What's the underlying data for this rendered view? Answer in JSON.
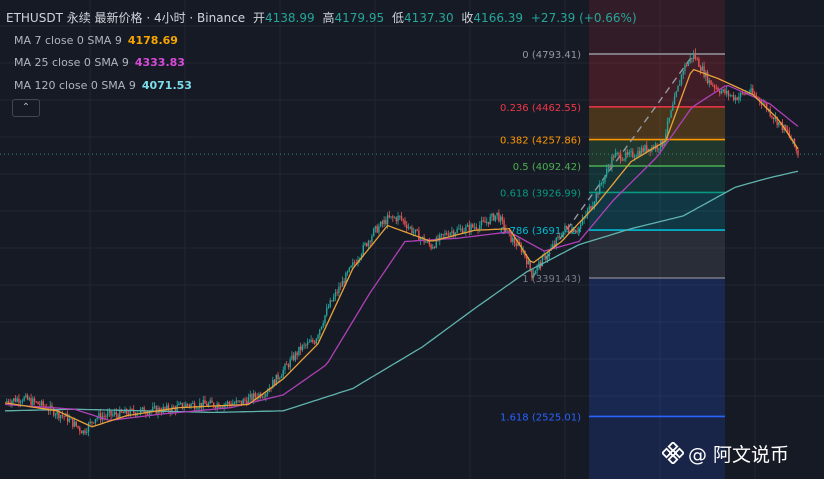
{
  "header": {
    "symbol": "ETHUSDT 永续 最新价格 · 4小时 · Binance",
    "open_label": "开",
    "open": "4138.99",
    "high_label": "高",
    "high": "4179.95",
    "low_label": "低",
    "low": "4137.30",
    "close_label": "收",
    "close": "4166.39",
    "change": "+27.39 (+0.66%)"
  },
  "indicators": [
    {
      "label": "MA 7 close 0 SMA 9",
      "value": "4178.69",
      "color": "#F7A600"
    },
    {
      "label": "MA 25 close 0 SMA 9",
      "value": "4333.83",
      "color": "#D84BD8"
    },
    {
      "label": "MA 120 close 0 SMA 9",
      "value": "4071.53",
      "color": "#7DDDE8"
    }
  ],
  "collapse_icon": "chevron-up-icon",
  "watermark": {
    "icon": "binance-logo-icon",
    "text": "@ 阿文说币"
  },
  "chart_data": {
    "type": "candlestick",
    "title": "",
    "xlabel": "",
    "ylabel": "",
    "ylim": [
      2300,
      4900
    ],
    "grid": true,
    "fibonacci": [
      {
        "ratio": "0",
        "price": 4793.41,
        "label": "0 (4793.41)",
        "color": "#9598A1"
      },
      {
        "ratio": "0.236",
        "price": 4462.55,
        "label": "0.236 (4462.55)",
        "color": "#F23645"
      },
      {
        "ratio": "0.382",
        "price": 4257.86,
        "label": "0.382 (4257.86)",
        "color": "#FF9800"
      },
      {
        "ratio": "0.5",
        "price": 4092.42,
        "label": "0.5 (4092.42)",
        "color": "#4CAF50"
      },
      {
        "ratio": "0.618",
        "price": 3926.99,
        "label": "0.618 (3926.99)",
        "color": "#089981"
      },
      {
        "ratio": "0.786",
        "price": 3691.46,
        "label": "0.786 (3691.46)",
        "color": "#00BCD4"
      },
      {
        "ratio": "1",
        "price": 3391.43,
        "label": "1 (3391.43)",
        "color": "#787B86"
      },
      {
        "ratio": "1.618",
        "price": 2525.01,
        "label": "1.618 (2525.01)",
        "color": "#2962FF"
      }
    ],
    "price_path": [
      [
        0,
        2620
      ],
      [
        10,
        2640
      ],
      [
        20,
        2600
      ],
      [
        35,
        2520
      ],
      [
        45,
        2430
      ],
      [
        52,
        2520
      ],
      [
        65,
        2540
      ],
      [
        80,
        2560
      ],
      [
        95,
        2570
      ],
      [
        105,
        2600
      ],
      [
        118,
        2600
      ],
      [
        135,
        2610
      ],
      [
        150,
        2680
      ],
      [
        162,
        2840
      ],
      [
        170,
        2950
      ],
      [
        178,
        3000
      ],
      [
        186,
        3210
      ],
      [
        195,
        3380
      ],
      [
        205,
        3560
      ],
      [
        212,
        3680
      ],
      [
        220,
        3760
      ],
      [
        227,
        3770
      ],
      [
        235,
        3680
      ],
      [
        245,
        3590
      ],
      [
        255,
        3680
      ],
      [
        265,
        3700
      ],
      [
        275,
        3730
      ],
      [
        283,
        3790
      ],
      [
        290,
        3650
      ],
      [
        298,
        3560
      ],
      [
        303,
        3420
      ],
      [
        312,
        3540
      ],
      [
        322,
        3700
      ],
      [
        330,
        3700
      ],
      [
        340,
        3910
      ],
      [
        350,
        4160
      ],
      [
        358,
        4150
      ],
      [
        368,
        4200
      ],
      [
        378,
        4230
      ],
      [
        385,
        4500
      ],
      [
        390,
        4700
      ],
      [
        396,
        4790
      ],
      [
        405,
        4620
      ],
      [
        412,
        4560
      ],
      [
        420,
        4520
      ],
      [
        428,
        4560
      ],
      [
        435,
        4500
      ],
      [
        442,
        4400
      ],
      [
        450,
        4300
      ],
      [
        456,
        4170
      ]
    ],
    "ma7_path": [
      [
        0,
        2610
      ],
      [
        30,
        2560
      ],
      [
        50,
        2460
      ],
      [
        70,
        2530
      ],
      [
        100,
        2580
      ],
      [
        140,
        2600
      ],
      [
        160,
        2760
      ],
      [
        180,
        2980
      ],
      [
        200,
        3450
      ],
      [
        220,
        3720
      ],
      [
        245,
        3620
      ],
      [
        270,
        3690
      ],
      [
        290,
        3700
      ],
      [
        303,
        3480
      ],
      [
        320,
        3620
      ],
      [
        340,
        3850
      ],
      [
        360,
        4120
      ],
      [
        380,
        4250
      ],
      [
        395,
        4700
      ],
      [
        410,
        4640
      ],
      [
        430,
        4540
      ],
      [
        445,
        4380
      ],
      [
        456,
        4200
      ]
    ],
    "ma25_path": [
      [
        0,
        2600
      ],
      [
        40,
        2570
      ],
      [
        60,
        2500
      ],
      [
        90,
        2540
      ],
      [
        130,
        2580
      ],
      [
        160,
        2660
      ],
      [
        185,
        2850
      ],
      [
        210,
        3300
      ],
      [
        230,
        3620
      ],
      [
        260,
        3640
      ],
      [
        290,
        3680
      ],
      [
        310,
        3560
      ],
      [
        330,
        3620
      ],
      [
        350,
        3880
      ],
      [
        375,
        4150
      ],
      [
        395,
        4460
      ],
      [
        415,
        4600
      ],
      [
        440,
        4480
      ],
      [
        456,
        4340
      ]
    ],
    "ma120_path": [
      [
        0,
        2560
      ],
      [
        40,
        2570
      ],
      [
        80,
        2560
      ],
      [
        120,
        2550
      ],
      [
        160,
        2560
      ],
      [
        200,
        2700
      ],
      [
        240,
        2960
      ],
      [
        270,
        3200
      ],
      [
        300,
        3430
      ],
      [
        330,
        3600
      ],
      [
        360,
        3700
      ],
      [
        390,
        3780
      ],
      [
        420,
        3960
      ],
      [
        440,
        4020
      ],
      [
        456,
        4060
      ]
    ]
  }
}
